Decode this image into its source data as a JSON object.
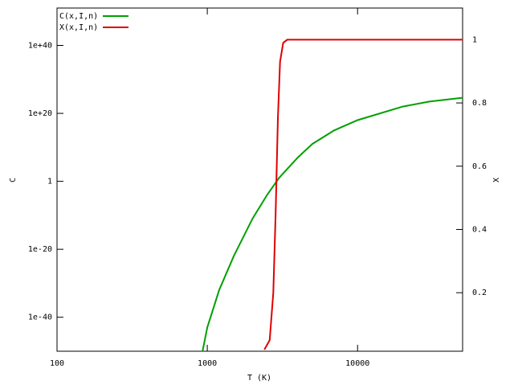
{
  "chart_data": {
    "type": "line",
    "xlabel": "T (K)",
    "ylabel": "C",
    "y2label": "X",
    "xscale": "log",
    "yscale": "log",
    "xlim": [
      100,
      50000
    ],
    "xticks": [
      100,
      1000,
      10000
    ],
    "ylim": [
      1e-50,
      1e+51
    ],
    "yticks": [
      {
        "value": 1e+40,
        "label": "1e+40"
      },
      {
        "value": 1e+20,
        "label": "1e+20"
      },
      {
        "value": 1,
        "label": "1"
      },
      {
        "value": 1e-20,
        "label": "1e-20"
      },
      {
        "value": 1e-40,
        "label": "1e-40"
      }
    ],
    "y2lim": [
      0.015,
      1.1
    ],
    "y2ticks": [
      0.2,
      0.4,
      0.6,
      0.8,
      1
    ],
    "legend": "top-left",
    "series": [
      {
        "name": "C(x,I,n)",
        "color": "#00a000",
        "x": [
          930,
          1000,
          1200,
          1500,
          2000,
          2500,
          3000,
          4000,
          5000,
          7000,
          10000,
          20000,
          30000,
          50000
        ],
        "values": [
          1e-50,
          1e-43,
          1e-32,
          1e-22,
          1e-11,
          0.0001,
          10,
          10000000.0,
          100000000000.0,
          1000000000000000.0,
          1e+18,
          1e+22,
          3e+23,
          4e+24
        ]
      },
      {
        "name": "X(x,I,n)",
        "color": "#e00000",
        "axis": "y2",
        "x": [
          2400,
          2600,
          2750,
          2850,
          2950,
          3050,
          3200,
          3400,
          50000
        ],
        "values": [
          0.02,
          0.05,
          0.2,
          0.45,
          0.75,
          0.93,
          0.99,
          1,
          1
        ]
      }
    ]
  }
}
